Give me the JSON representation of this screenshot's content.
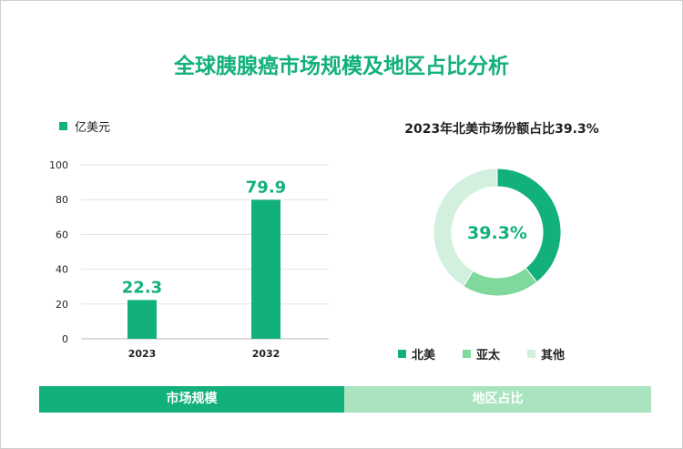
{
  "title": "全球胰腺癌市场规模及地区占比分析",
  "colors": {
    "primary": "#12b07a",
    "mid": "#7fd89c",
    "light": "#d2f0dd",
    "tab_light": "#a9e4bf"
  },
  "chart_data": [
    {
      "type": "bar",
      "legend": [
        "亿美元"
      ],
      "categories": [
        "2023",
        "2032"
      ],
      "values": [
        22.3,
        79.9
      ],
      "ylim": [
        0,
        100
      ],
      "yticks": [
        0,
        20,
        40,
        60,
        80,
        100
      ],
      "grid": true,
      "legend_placement": "top-left"
    },
    {
      "type": "pie",
      "title": "2023年北美市场份额占比39.3%",
      "center_label": "39.3%",
      "labels": [
        "北美",
        "亚太",
        "其他"
      ],
      "values": [
        39.3,
        19.6,
        41.1
      ],
      "colors": [
        "#12b07a",
        "#7fd89c",
        "#d2f0dd"
      ],
      "legend_placement": "bottom"
    }
  ],
  "tabs": [
    "市场规模",
    "地区占比"
  ]
}
